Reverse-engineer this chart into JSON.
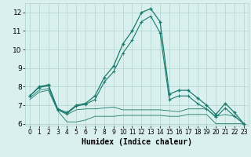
{
  "xlabel": "Humidex (Indice chaleur)",
  "x": [
    0,
    1,
    2,
    3,
    4,
    5,
    6,
    7,
    8,
    9,
    10,
    11,
    12,
    13,
    14,
    15,
    16,
    17,
    18,
    19,
    20,
    21,
    22,
    23
  ],
  "line1": [
    7.5,
    8.0,
    8.1,
    6.8,
    6.6,
    7.0,
    7.1,
    7.5,
    8.5,
    9.1,
    10.3,
    11.0,
    12.0,
    12.2,
    11.5,
    7.6,
    7.8,
    7.8,
    7.4,
    7.0,
    6.5,
    7.1,
    6.6,
    6.0
  ],
  "line2": [
    7.5,
    7.95,
    8.05,
    6.75,
    6.55,
    6.95,
    7.05,
    7.3,
    8.25,
    8.8,
    9.8,
    10.5,
    11.5,
    11.8,
    10.9,
    7.3,
    7.5,
    7.5,
    7.1,
    6.8,
    6.35,
    6.85,
    6.4,
    6.0
  ],
  "line3": [
    7.4,
    7.8,
    7.9,
    6.75,
    6.5,
    6.75,
    6.8,
    6.8,
    6.85,
    6.9,
    6.75,
    6.75,
    6.75,
    6.75,
    6.75,
    6.7,
    6.65,
    6.8,
    6.8,
    6.8,
    6.4,
    6.5,
    6.4,
    6.0
  ],
  "line4": [
    7.3,
    7.7,
    7.8,
    6.7,
    6.1,
    6.1,
    6.2,
    6.4,
    6.4,
    6.4,
    6.45,
    6.45,
    6.45,
    6.45,
    6.45,
    6.4,
    6.4,
    6.5,
    6.5,
    6.5,
    6.0,
    6.0,
    6.0,
    6.0
  ],
  "color": "#1a7a6e",
  "bg_color": "#daf0ee",
  "grid_color": "#b0d4d0",
  "ylim": [
    5.9,
    12.5
  ],
  "yticks": [
    6,
    7,
    8,
    9,
    10,
    11,
    12
  ],
  "xticks": [
    0,
    1,
    2,
    3,
    4,
    5,
    6,
    7,
    8,
    9,
    10,
    11,
    12,
    13,
    14,
    15,
    16,
    17,
    18,
    19,
    20,
    21,
    22,
    23
  ]
}
